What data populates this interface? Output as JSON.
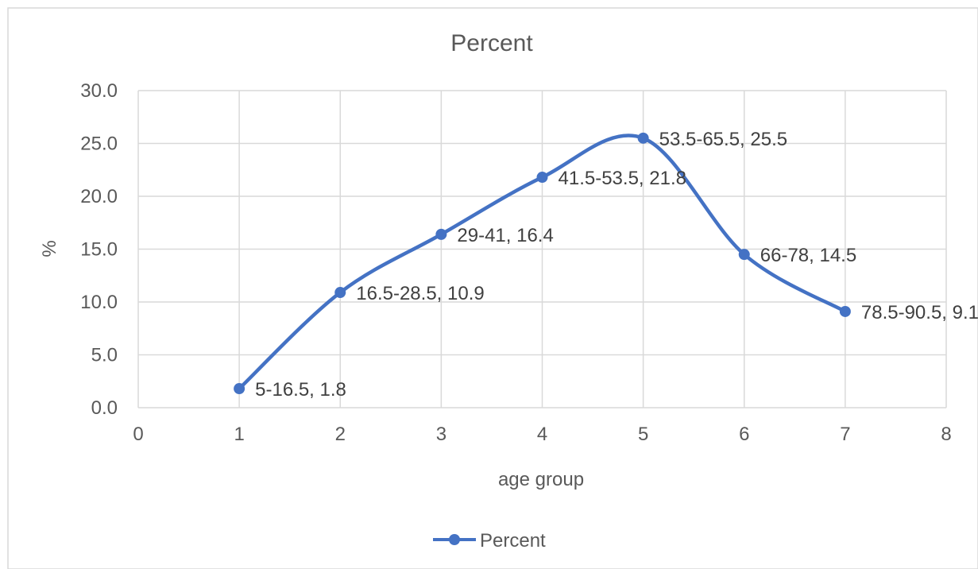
{
  "chart_data": {
    "type": "scatter",
    "title": "Percent",
    "xlabel": "age group",
    "ylabel": "%",
    "xlim": [
      0,
      8
    ],
    "ylim": [
      0,
      30
    ],
    "x_ticks": [
      "0",
      "1",
      "2",
      "3",
      "4",
      "5",
      "6",
      "7",
      "8"
    ],
    "y_ticks": [
      "0.0",
      "5.0",
      "10.0",
      "15.0",
      "20.0",
      "25.0",
      "30.0"
    ],
    "grid": true,
    "smooth_line": true,
    "legend": {
      "position": "bottom",
      "entries": [
        "Percent"
      ]
    },
    "series": [
      {
        "name": "Percent",
        "color": "#4472C4",
        "x": [
          1,
          2,
          3,
          4,
          5,
          6,
          7
        ],
        "y": [
          1.8,
          10.9,
          16.4,
          21.8,
          25.5,
          14.5,
          9.1
        ],
        "labels": [
          "5-16.5, 1.8",
          "16.5-28.5, 10.9",
          "29-41, 16.4",
          "41.5-53.5, 21.8",
          "53.5-65.5, 25.5",
          "66-78, 14.5",
          "78.5-90.5, 9.1"
        ]
      }
    ]
  }
}
